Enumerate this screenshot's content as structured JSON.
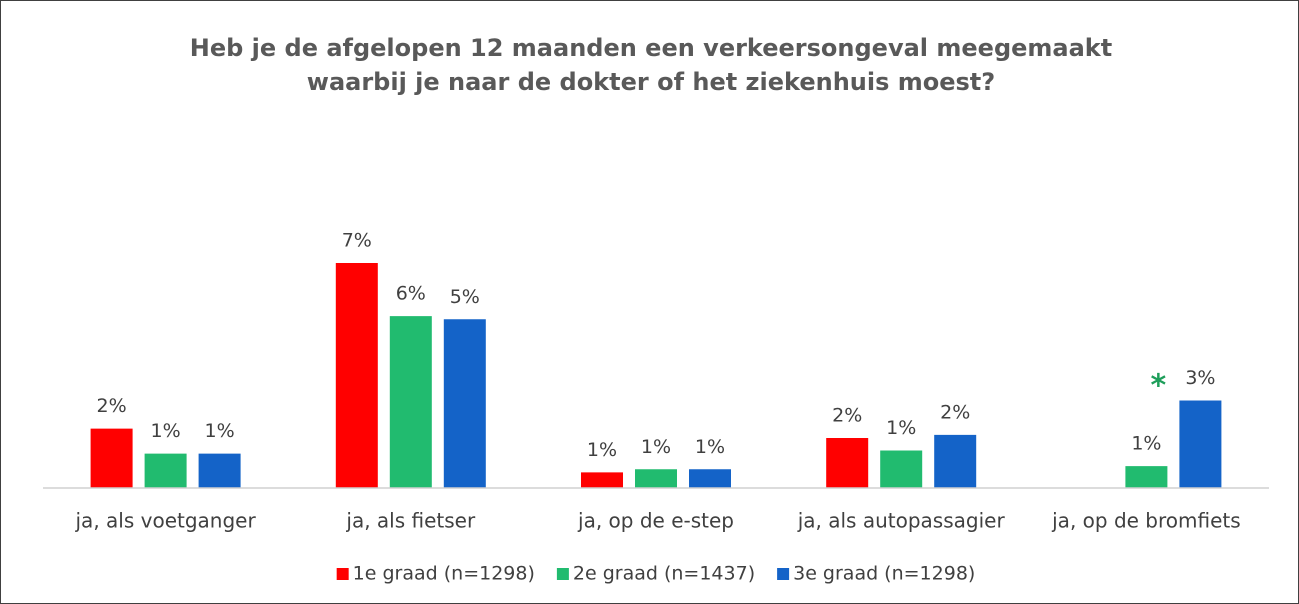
{
  "chart_data": {
    "type": "bar",
    "title": "Heb je de afgelopen 12 maanden een verkeersongeval meegemaakt waarbij je naar de dokter of het ziekenhuis moest?",
    "categories": [
      "ja, als voetganger",
      "ja, als fietser",
      "ja, op de e-step",
      "ja, als autopassagier",
      "ja, op de bromfiets"
    ],
    "series": [
      {
        "name": "1e graad (n=1298)",
        "color": "#ff0000",
        "values": [
          1.9,
          7.2,
          0.5,
          1.6,
          null
        ],
        "value_labels": [
          "2%",
          "7%",
          "1%",
          "2%",
          null
        ]
      },
      {
        "name": "2e graad (n=1437)",
        "color": "#21bb6f",
        "values": [
          1.1,
          5.5,
          0.6,
          1.2,
          0.7
        ],
        "value_labels": [
          "1%",
          "6%",
          "1%",
          "1%",
          "1%"
        ]
      },
      {
        "name": "3e graad (n=1298)",
        "color": "#1463c8",
        "values": [
          1.1,
          5.4,
          0.6,
          1.7,
          2.8
        ],
        "value_labels": [
          "1%",
          "5%",
          "1%",
          "2%",
          "3%"
        ]
      }
    ],
    "annotations": [
      "*"
    ],
    "ylim": [
      0,
      8
    ],
    "legend": "bottom"
  }
}
